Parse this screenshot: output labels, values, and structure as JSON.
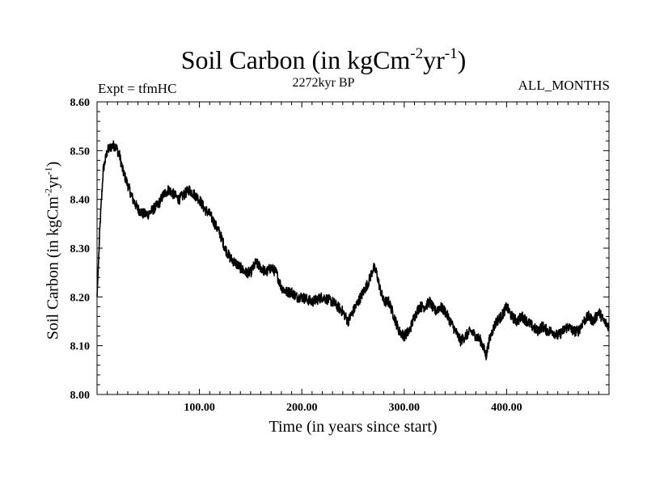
{
  "header": {
    "title_main": "Soil Carbon (in kgCm",
    "title_sup1": "-2",
    "title_mid": "yr",
    "title_sup2": "-1",
    "title_end": ")",
    "subtitle": "2272kyr BP",
    "expt": "Expt = tfmHC",
    "months": "ALL_MONTHS"
  },
  "axes": {
    "xlabel": "Time (in years since start)",
    "ylabel_main": "Soil Carbon (in kgCm",
    "ylabel_sup1": "-2",
    "ylabel_mid": "yr",
    "ylabel_sup2": "-1",
    "ylabel_end": ")"
  },
  "chart_data": {
    "type": "line",
    "title": "Soil Carbon (in kgCm-2yr-1)",
    "subtitle": "2272kyr BP",
    "xlabel": "Time (in years since start)",
    "ylabel": "Soil Carbon (in kgCm-2yr-1)",
    "xlim": [
      0,
      500
    ],
    "ylim": [
      8.0,
      8.6
    ],
    "xticks": [
      100,
      200,
      300,
      400
    ],
    "xtick_labels": [
      "100.00",
      "200.00",
      "300.00",
      "400.00"
    ],
    "yticks": [
      8.0,
      8.1,
      8.2,
      8.3,
      8.4,
      8.5,
      8.6
    ],
    "ytick_labels": [
      "8.00",
      "8.10",
      "8.20",
      "8.30",
      "8.40",
      "8.50",
      "8.60"
    ],
    "grid": false,
    "color": "#000000",
    "series": [
      {
        "name": "Soil Carbon",
        "x": [
          0,
          3,
          6,
          10,
          15,
          18,
          22,
          25,
          30,
          35,
          40,
          45,
          50,
          55,
          60,
          65,
          70,
          75,
          80,
          85,
          90,
          95,
          100,
          105,
          110,
          115,
          120,
          125,
          130,
          135,
          140,
          145,
          150,
          155,
          160,
          165,
          170,
          175,
          180,
          185,
          190,
          195,
          200,
          210,
          220,
          230,
          240,
          245,
          250,
          255,
          260,
          265,
          270,
          273,
          276,
          280,
          285,
          290,
          295,
          300,
          305,
          310,
          315,
          320,
          325,
          330,
          335,
          340,
          345,
          350,
          355,
          360,
          365,
          370,
          375,
          380,
          383,
          386,
          390,
          395,
          400,
          405,
          410,
          415,
          420,
          425,
          430,
          435,
          440,
          445,
          450,
          455,
          460,
          465,
          470,
          475,
          480,
          485,
          490,
          495,
          500
        ],
        "values": [
          8.2,
          8.35,
          8.46,
          8.5,
          8.51,
          8.51,
          8.49,
          8.46,
          8.43,
          8.4,
          8.38,
          8.37,
          8.37,
          8.38,
          8.39,
          8.41,
          8.42,
          8.41,
          8.4,
          8.41,
          8.42,
          8.41,
          8.4,
          8.38,
          8.37,
          8.35,
          8.33,
          8.3,
          8.28,
          8.27,
          8.26,
          8.25,
          8.25,
          8.27,
          8.26,
          8.25,
          8.26,
          8.25,
          8.22,
          8.21,
          8.21,
          8.2,
          8.2,
          8.19,
          8.2,
          8.19,
          8.17,
          8.15,
          8.17,
          8.19,
          8.21,
          8.23,
          8.26,
          8.25,
          8.22,
          8.19,
          8.19,
          8.16,
          8.13,
          8.12,
          8.13,
          8.16,
          8.18,
          8.18,
          8.19,
          8.17,
          8.18,
          8.17,
          8.15,
          8.13,
          8.11,
          8.12,
          8.13,
          8.12,
          8.11,
          8.08,
          8.11,
          8.13,
          8.15,
          8.16,
          8.18,
          8.16,
          8.15,
          8.16,
          8.15,
          8.14,
          8.13,
          8.14,
          8.13,
          8.13,
          8.12,
          8.13,
          8.14,
          8.13,
          8.13,
          8.15,
          8.16,
          8.15,
          8.17,
          8.15,
          8.14
        ]
      }
    ]
  }
}
